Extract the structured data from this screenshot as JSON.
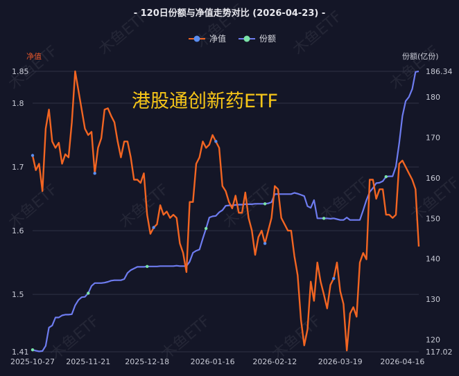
{
  "chart_data": {
    "type": "line",
    "title": "- 120日份额与净值走势对比 (2026-04-23) -",
    "overlay_text": "港股通创新药ETF",
    "watermark": "木鱼ETF",
    "left_axis_name": "净值",
    "right_axis_name": "份额(亿份)",
    "x_tick_labels": [
      "2025-10-27",
      "2025-11-21",
      "2025-12-18",
      "2026-01-16",
      "2026-02-12",
      "2026-03-19",
      "2026-04-16"
    ],
    "x_tick_index": [
      0,
      17,
      35,
      55,
      74,
      94,
      113
    ],
    "yleft_ticks": [
      "1.85",
      "1.8",
      "1.7",
      "1.6",
      "1.5",
      "1.41"
    ],
    "yleft_tick_values": [
      1.85,
      1.8,
      1.7,
      1.6,
      1.5,
      1.41
    ],
    "yright_ticks": [
      "186.34",
      "180",
      "170",
      "160",
      "150",
      "140",
      "130",
      "120",
      "117.02"
    ],
    "yright_tick_values": [
      186.34,
      180,
      170,
      160,
      150,
      140,
      130,
      120,
      117.02
    ],
    "yleft_lim": [
      1.41,
      1.85
    ],
    "yright_lim": [
      117.02,
      186.34
    ],
    "colors": {
      "nav": "#f26522",
      "share": "#6e7cf0",
      "legend_nav_dot": "#5a8df0",
      "legend_share_dot": "#7be3a8",
      "marker": "#7be3a8"
    },
    "series": [
      {
        "name": "净值",
        "axis": "left",
        "values": [
          1.718,
          1.695,
          1.705,
          1.662,
          1.76,
          1.79,
          1.74,
          1.73,
          1.738,
          1.705,
          1.72,
          1.715,
          1.77,
          1.85,
          1.82,
          1.79,
          1.76,
          1.75,
          1.755,
          1.69,
          1.73,
          1.745,
          1.79,
          1.792,
          1.78,
          1.77,
          1.74,
          1.715,
          1.74,
          1.74,
          1.715,
          1.68,
          1.68,
          1.675,
          1.69,
          1.625,
          1.595,
          1.605,
          1.61,
          1.64,
          1.625,
          1.63,
          1.62,
          1.625,
          1.62,
          1.58,
          1.565,
          1.535,
          1.645,
          1.645,
          1.705,
          1.715,
          1.74,
          1.73,
          1.735,
          1.75,
          1.74,
          1.73,
          1.67,
          1.662,
          1.645,
          1.635,
          1.655,
          1.628,
          1.628,
          1.66,
          1.62,
          1.6,
          1.562,
          1.59,
          1.6,
          1.58,
          1.6,
          1.62,
          1.67,
          1.665,
          1.62,
          1.61,
          1.6,
          1.6,
          1.56,
          1.53,
          1.46,
          1.42,
          1.445,
          1.52,
          1.49,
          1.55,
          1.52,
          1.5,
          1.478,
          1.515,
          1.525,
          1.55,
          1.505,
          1.485,
          1.412,
          1.47,
          1.48,
          1.465,
          1.55,
          1.565,
          1.555,
          1.68,
          1.68,
          1.65,
          1.665,
          1.665,
          1.625,
          1.625,
          1.62,
          1.625,
          1.705,
          1.71,
          1.7,
          1.69,
          1.68,
          1.665,
          1.575
        ]
      },
      {
        "name": "份额",
        "axis": "right",
        "values": [
          117.5,
          117.3,
          117.1,
          117.2,
          118.5,
          123,
          123.5,
          125.5,
          125.5,
          126,
          126.2,
          126.2,
          126.3,
          128.5,
          129.8,
          130.5,
          130.6,
          131.5,
          133.3,
          134,
          134,
          134,
          134.1,
          134.3,
          134.6,
          134.7,
          134.7,
          134.7,
          135,
          136.5,
          137.2,
          137.6,
          138,
          138,
          138,
          138.1,
          138.1,
          138.1,
          138.1,
          138.2,
          138.2,
          138.2,
          138.2,
          138.2,
          138.3,
          138.2,
          138.2,
          138.2,
          139.3,
          141.5,
          142,
          142.3,
          145,
          147.5,
          150.2,
          150.5,
          150.6,
          151.5,
          152,
          153.1,
          153.2,
          153.2,
          153.3,
          153.4,
          153.4,
          153.5,
          153.5,
          153.5,
          153.6,
          153.6,
          153.6,
          153.6,
          153.7,
          154,
          156,
          156,
          156,
          156,
          156,
          156,
          156.3,
          156.1,
          155.8,
          155.5,
          153,
          152.6,
          154.5,
          150,
          150,
          150,
          150,
          149.9,
          150,
          149.8,
          149.6,
          149.6,
          150.2,
          149.6,
          149.6,
          149.6,
          149.6,
          152,
          154.5,
          156.5,
          157.5,
          158.7,
          158.8,
          159.2,
          160.3,
          160.4,
          160.4,
          162.8,
          168.5,
          175.3,
          179,
          180,
          182,
          186.2,
          186.34
        ]
      }
    ],
    "marker_indices": {
      "净值": [
        0,
        19,
        37,
        56,
        71,
        92
      ],
      "份额": [
        0,
        17,
        35,
        53,
        71,
        89,
        108
      ]
    }
  }
}
